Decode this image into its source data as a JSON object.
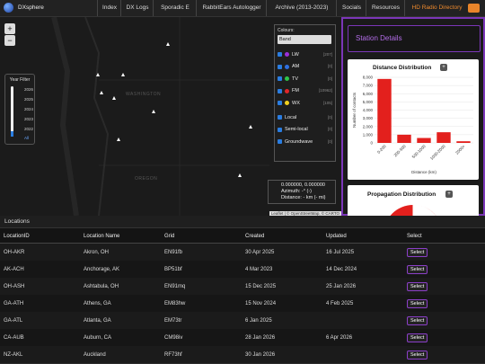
{
  "nav": {
    "brand": "DXsphere",
    "links": [
      "Index",
      "DX Logs",
      "Sporadic E",
      "RabbitEars Autologger",
      "Archive (2013-2023)",
      "Socials",
      "Resources",
      "HD Radio Directory"
    ]
  },
  "map": {
    "zoom_in": "+",
    "zoom_out": "−",
    "labels": [
      "WASHINGTON",
      "OREGON"
    ],
    "year_filter": {
      "title": "Year Filter",
      "years": [
        "2026",
        "2025",
        "2024",
        "2023",
        "2022"
      ],
      "all": "All"
    },
    "colours": {
      "label": "Colours:",
      "select": "Band",
      "bands": [
        {
          "name": "LW",
          "count": "[207]",
          "color": "#9b30d9"
        },
        {
          "name": "AM",
          "count": "[0]",
          "color": "#2f6fe0"
        },
        {
          "name": "TV",
          "count": "[0]",
          "color": "#2ec44a"
        },
        {
          "name": "FM",
          "count": "[10962]",
          "color": "#e0262a"
        },
        {
          "name": "WX",
          "count": "[105]",
          "color": "#f0d020"
        }
      ],
      "types": [
        {
          "name": "Local",
          "count": "[0]"
        },
        {
          "name": "Semi-local",
          "count": "[0]"
        },
        {
          "name": "Groundwave",
          "count": "[0]"
        }
      ]
    },
    "coords": {
      "position": "0.000000, 0.000000",
      "azimuth": "Azimuth: -° (-)",
      "distance": "Distance: - km (- mi)"
    },
    "attribution": "Leaflet | © OpenStreetMap, © CARTO"
  },
  "station_details": {
    "title": "Station Details"
  },
  "chart_data": {
    "type": "bar",
    "title": "Distance Distribution",
    "button": "+",
    "x_label": "Distance (km)",
    "y_label": "Number of contacts",
    "categories": [
      "0-200",
      "200-500",
      "500-1000",
      "1000-2000",
      "2000+"
    ],
    "values": [
      7800,
      1000,
      600,
      1300,
      200
    ],
    "color": "#e3201d",
    "ylim": [
      0,
      8000
    ],
    "yticks": [
      0,
      {
        "value": 1000,
        "label": "1,000"
      },
      {
        "value": 2000,
        "label": "2,000"
      },
      {
        "value": 3000,
        "label": "3,000"
      },
      {
        "value": 4000,
        "label": "4,000"
      },
      {
        "value": 5000,
        "label": "5,000"
      },
      {
        "value": 6000,
        "label": "6,000"
      },
      {
        "value": 7000,
        "label": "7,000"
      },
      {
        "value": 8000,
        "label": "8,000"
      }
    ]
  },
  "propagation": {
    "title": "Propagation Distribution",
    "button": "+"
  },
  "locations": {
    "title": "Locations",
    "columns": [
      "LocationID",
      "Location Name",
      "Grid",
      "Created",
      "Updated",
      "Select"
    ],
    "select_label": "Select",
    "rows": [
      {
        "id": "OH-AKR",
        "name": "Akron, OH",
        "grid": "EN91fb",
        "created": "30 Apr 2025",
        "updated": "16 Jul 2025"
      },
      {
        "id": "AK-ACH",
        "name": "Anchorage, AK",
        "grid": "BP51bf",
        "created": "4 Mar 2023",
        "updated": "14 Dec 2024"
      },
      {
        "id": "OH-ASH",
        "name": "Ashtabula, OH",
        "grid": "EN91mq",
        "created": "15 Dec 2025",
        "updated": "25 Jan 2026"
      },
      {
        "id": "GA-ATH",
        "name": "Athens, GA",
        "grid": "EM83hw",
        "created": "15 Nov 2024",
        "updated": "4 Feb 2025"
      },
      {
        "id": "GA-ATL",
        "name": "Atlanta, GA",
        "grid": "EM73tr",
        "created": "6 Jan 2025",
        "updated": null
      },
      {
        "id": "CA-AUB",
        "name": "Auburn, CA",
        "grid": "CM98iv",
        "created": "28 Jan 2026",
        "updated": "6 Apr 2026"
      },
      {
        "id": "NZ-AKL",
        "name": "Auckland",
        "grid": "RF73hf",
        "created": "30 Jan 2026",
        "updated": null
      }
    ]
  }
}
